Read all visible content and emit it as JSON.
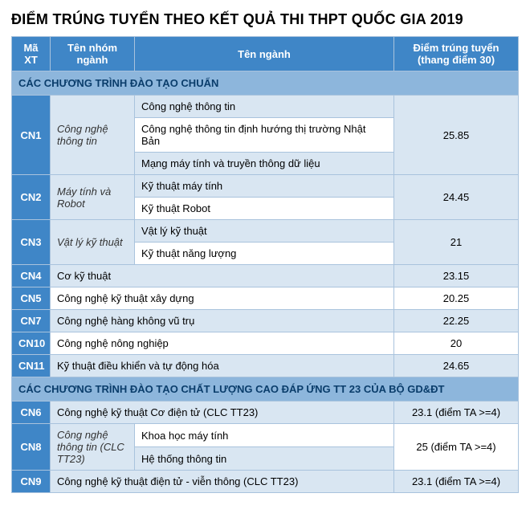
{
  "title": "ĐIỂM TRÚNG TUYỂN THEO KẾT QUẢ THI THPT QUỐC GIA 2019",
  "headers": {
    "code": "Mã XT",
    "group": "Tên nhóm ngành",
    "major": "Tên ngành",
    "score": "Điểm trúng tuyển (thang điểm 30)"
  },
  "section1": "CÁC CHƯƠNG TRÌNH ĐÀO TẠO CHUẨN",
  "section2": "CÁC CHƯƠNG TRÌNH ĐÀO TẠO CHẤT LƯỢNG CAO ĐÁP ỨNG TT 23 CỦA BỘ GD&ĐT",
  "cn1": {
    "code": "CN1",
    "group": "Công nghệ thông tin",
    "m1": "Công nghệ thông tin",
    "m2": "Công nghệ thông tin định hướng thị trường Nhật Bản",
    "m3": "Mạng máy tính và truyền thông dữ liệu",
    "score": "25.85"
  },
  "cn2": {
    "code": "CN2",
    "group": "Máy tính và Robot",
    "m1": "Kỹ thuật máy tính",
    "m2": "Kỹ thuật Robot",
    "score": "24.45"
  },
  "cn3": {
    "code": "CN3",
    "group": "Vật lý kỹ thuật",
    "m1": "Vật lý kỹ thuật",
    "m2": "Kỹ thuật năng lượng",
    "score": "21"
  },
  "cn4": {
    "code": "CN4",
    "major": "Cơ kỹ thuật",
    "score": "23.15"
  },
  "cn5": {
    "code": "CN5",
    "major": "Công nghệ kỹ thuật xây dựng",
    "score": "20.25"
  },
  "cn7": {
    "code": "CN7",
    "major": "Công nghệ hàng không vũ trụ",
    "score": "22.25"
  },
  "cn10": {
    "code": "CN10",
    "major": "Công nghệ nông nghiệp",
    "score": "20"
  },
  "cn11": {
    "code": "CN11",
    "major": "Kỹ thuật điều khiển và tự động hóa",
    "score": "24.65"
  },
  "cn6": {
    "code": "CN6",
    "major": "Công nghệ kỹ thuật Cơ điện tử (CLC TT23)",
    "score": "23.1 (điểm TA >=4)"
  },
  "cn8": {
    "code": "CN8",
    "group": "Công nghệ thông tin (CLC TT23)",
    "m1": "Khoa học máy tính",
    "m2": "Hệ thống thông tin",
    "score": "25 (điểm TA >=4)"
  },
  "cn9": {
    "code": "CN9",
    "major": "Công nghệ kỹ thuật điện tử - viễn thông (CLC TT23)",
    "score": "23.1 (điểm TA >=4)"
  },
  "colors": {
    "header_bg": "#3f86c7",
    "section_bg": "#8db6dc",
    "alt_bg": "#d9e6f2",
    "border": "#a9c3dd"
  }
}
